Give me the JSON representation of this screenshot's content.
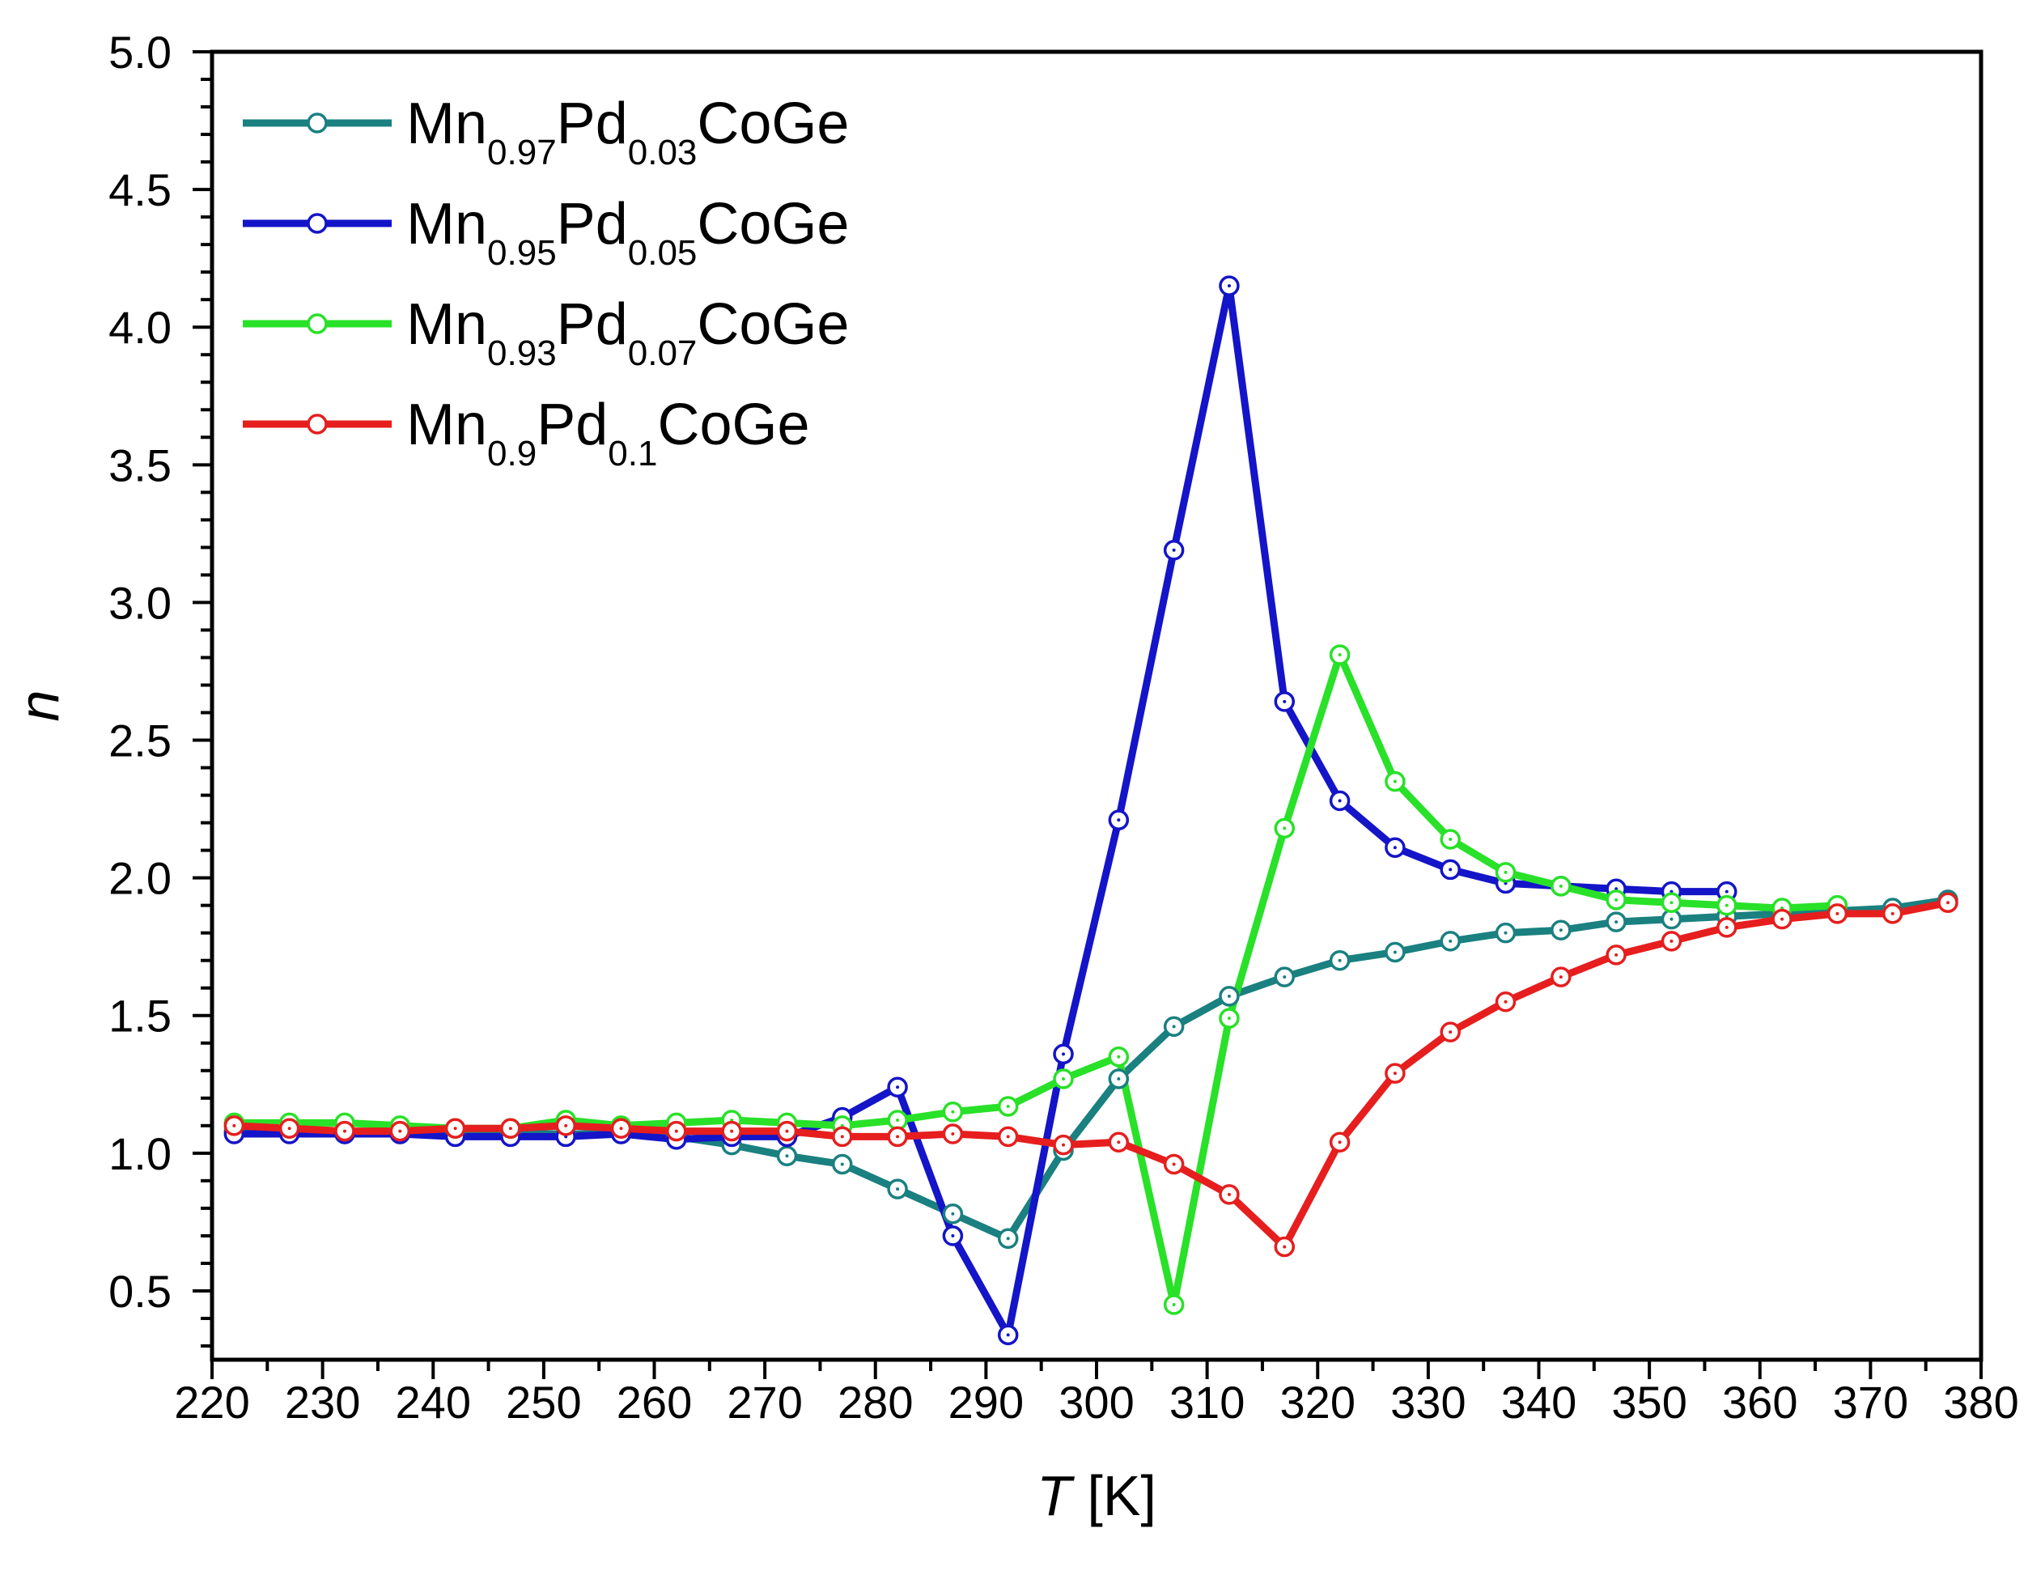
{
  "chart_data": {
    "type": "line",
    "title": "",
    "xlabel": "T",
    "xlabel_unit": "[K]",
    "ylabel": "n",
    "xlim": [
      220,
      380
    ],
    "ylim": [
      0.25,
      5.0
    ],
    "x_ticks": [
      220,
      230,
      240,
      250,
      260,
      270,
      280,
      290,
      300,
      310,
      320,
      330,
      340,
      350,
      360,
      370,
      380
    ],
    "y_ticks": [
      0.5,
      1.0,
      1.5,
      2.0,
      2.5,
      3.0,
      3.5,
      4.0,
      4.5,
      5.0
    ],
    "x_tick_labels": [
      "220",
      "230",
      "240",
      "250",
      "260",
      "270",
      "280",
      "290",
      "300",
      "310",
      "320",
      "330",
      "340",
      "350",
      "360",
      "370",
      "380"
    ],
    "y_tick_labels": [
      "0.5",
      "1.0",
      "1.5",
      "2.0",
      "2.5",
      "3.0",
      "3.5",
      "4.0",
      "4.5",
      "5.0"
    ],
    "legend_position": "top-left",
    "series": [
      {
        "name": "Mn0.97Pd0.03CoGe",
        "legend": {
          "el1": "Mn",
          "s1": "0.97",
          "el2": "Pd",
          "s2": "0.03",
          "rest": "CoGe"
        },
        "color": "#1a8080",
        "x": [
          222,
          227,
          232,
          237,
          242,
          247,
          252,
          257,
          262,
          267,
          272,
          277,
          282,
          287,
          292,
          297,
          302,
          307,
          312,
          317,
          322,
          327,
          332,
          337,
          342,
          347,
          352,
          357,
          362,
          367,
          372,
          377
        ],
        "y": [
          1.08,
          1.08,
          1.07,
          1.07,
          1.07,
          1.07,
          1.07,
          1.07,
          1.06,
          1.03,
          0.99,
          0.96,
          0.87,
          0.78,
          0.69,
          1.01,
          1.27,
          1.46,
          1.57,
          1.64,
          1.7,
          1.73,
          1.77,
          1.8,
          1.81,
          1.84,
          1.85,
          1.86,
          1.87,
          1.88,
          1.89,
          1.92
        ]
      },
      {
        "name": "Mn0.95Pd0.05CoGe",
        "legend": {
          "el1": "Mn",
          "s1": "0.95",
          "el2": "Pd",
          "s2": "0.05",
          "rest": "CoGe"
        },
        "color": "#1414c8",
        "x": [
          222,
          227,
          232,
          237,
          242,
          247,
          252,
          257,
          262,
          267,
          272,
          277,
          282,
          287,
          292,
          297,
          302,
          307,
          312,
          317,
          322,
          327,
          332,
          337,
          342,
          347,
          352,
          357
        ],
        "y": [
          1.07,
          1.07,
          1.07,
          1.07,
          1.06,
          1.06,
          1.06,
          1.07,
          1.05,
          1.06,
          1.06,
          1.13,
          1.24,
          0.7,
          0.34,
          1.36,
          2.21,
          3.19,
          4.15,
          2.64,
          2.28,
          2.11,
          2.03,
          1.98,
          1.97,
          1.96,
          1.95,
          1.95
        ]
      },
      {
        "name": "Mn0.93Pd0.07CoGe",
        "legend": {
          "el1": "Mn",
          "s1": "0.93",
          "el2": "Pd",
          "s2": "0.07",
          "rest": "CoGe"
        },
        "color": "#28e128",
        "x": [
          222,
          227,
          232,
          237,
          242,
          247,
          252,
          257,
          262,
          267,
          272,
          277,
          282,
          287,
          292,
          297,
          302,
          307,
          312,
          317,
          322,
          327,
          332,
          337,
          342,
          347,
          352,
          357,
          362,
          367
        ],
        "y": [
          1.11,
          1.11,
          1.11,
          1.1,
          1.09,
          1.09,
          1.12,
          1.1,
          1.11,
          1.12,
          1.11,
          1.1,
          1.12,
          1.15,
          1.17,
          1.27,
          1.35,
          0.45,
          1.49,
          2.18,
          2.81,
          2.35,
          2.14,
          2.02,
          1.97,
          1.92,
          1.91,
          1.9,
          1.89,
          1.9
        ]
      },
      {
        "name": "Mn0.9Pd0.1CoGe",
        "legend": {
          "el1": "Mn",
          "s1": "0.9",
          "el2": "Pd",
          "s2": "0.1",
          "rest": "CoGe"
        },
        "color": "#e61e1e",
        "x": [
          222,
          227,
          232,
          237,
          242,
          247,
          252,
          257,
          262,
          267,
          272,
          277,
          282,
          287,
          292,
          297,
          302,
          307,
          312,
          317,
          322,
          327,
          332,
          337,
          342,
          347,
          352,
          357,
          362,
          367,
          372,
          377
        ],
        "y": [
          1.1,
          1.09,
          1.08,
          1.08,
          1.09,
          1.09,
          1.1,
          1.09,
          1.08,
          1.08,
          1.08,
          1.06,
          1.06,
          1.07,
          1.06,
          1.03,
          1.04,
          0.96,
          0.85,
          0.66,
          1.04,
          1.29,
          1.44,
          1.55,
          1.64,
          1.72,
          1.77,
          1.82,
          1.85,
          1.87,
          1.87,
          1.91
        ]
      }
    ]
  }
}
